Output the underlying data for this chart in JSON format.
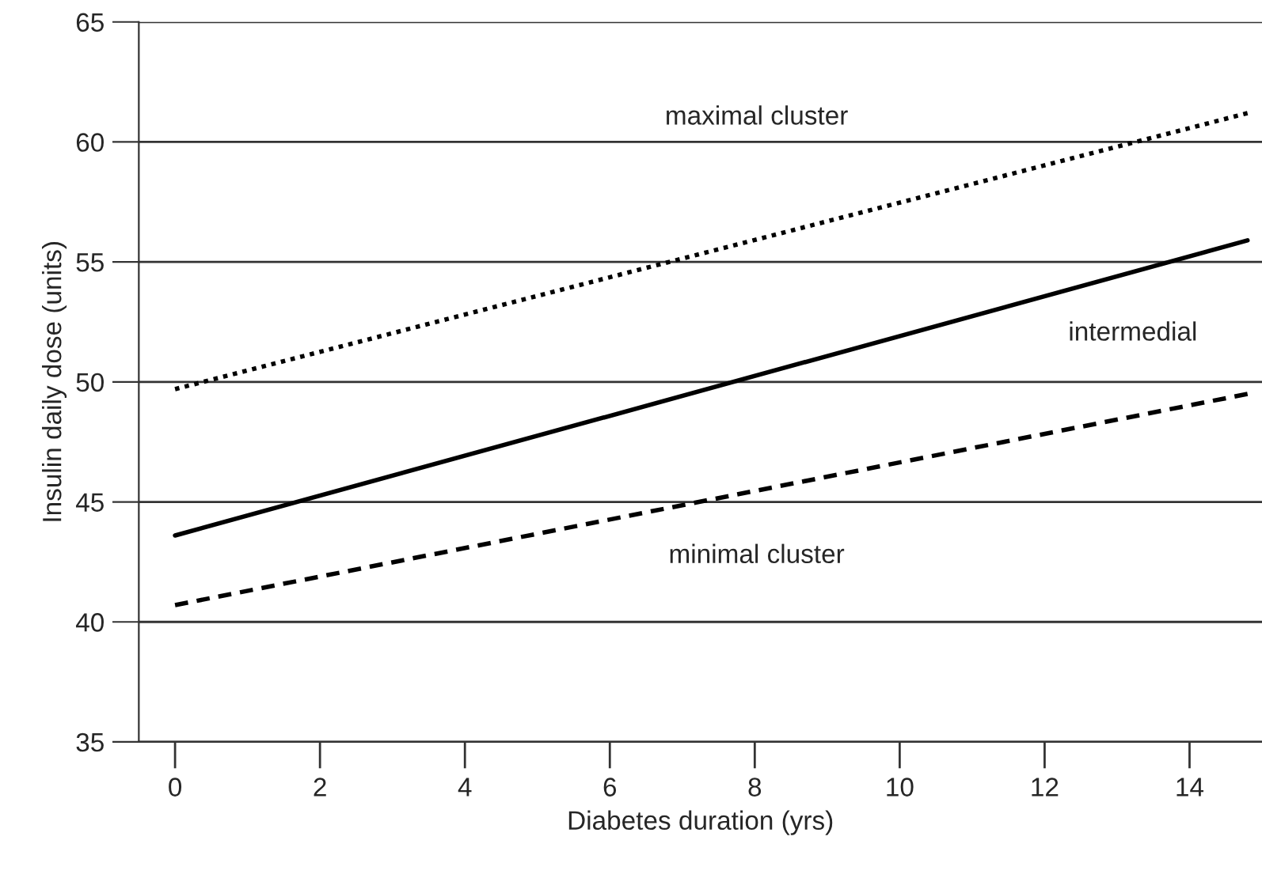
{
  "chart_data": {
    "type": "line",
    "xlabel": "Diabetes duration (yrs)",
    "ylabel": "Insulin daily dose (units)",
    "xlim": [
      -0.5,
      15
    ],
    "ylim": [
      35,
      65
    ],
    "xticks": [
      0,
      2,
      4,
      6,
      8,
      10,
      12,
      14
    ],
    "yticks": [
      35,
      40,
      45,
      50,
      55,
      60,
      65
    ],
    "grid": "y",
    "x": [
      0,
      14.8
    ],
    "series": [
      {
        "color": "#000000",
        "line_style": "dotted",
        "values": [
          49.7,
          61.2
        ]
      },
      {
        "color": "#000000",
        "line_style": "solid",
        "values": [
          43.6,
          55.9
        ]
      },
      {
        "color": "#000000",
        "line_style": "dashed",
        "values": [
          40.7,
          49.5
        ]
      }
    ],
    "annotations": [
      "maximal cluster",
      "intermedial",
      "minimal cluster"
    ]
  }
}
